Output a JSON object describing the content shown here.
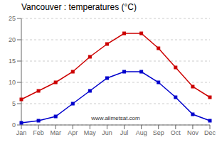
{
  "chart_data": {
    "type": "line",
    "title": "Vancouver : temperatures (°C)",
    "categories": [
      "Jan",
      "Feb",
      "Mar",
      "Apr",
      "May",
      "Jun",
      "Jul",
      "Aug",
      "Sep",
      "Oct",
      "Nov",
      "Dec"
    ],
    "series": [
      {
        "color": "#cc0000",
        "marker": "square",
        "line_style": "solid",
        "values": [
          6.0,
          8.0,
          10.0,
          12.5,
          16.0,
          19.0,
          21.5,
          21.5,
          18.0,
          13.5,
          9.0,
          6.5
        ]
      },
      {
        "color": "#0000cc",
        "marker": "square",
        "line_style": "solid",
        "values": [
          0.5,
          1.0,
          2.0,
          5.0,
          8.0,
          11.0,
          12.5,
          12.5,
          10.0,
          6.5,
          2.5,
          1.0
        ]
      }
    ],
    "ylim": [
      0,
      25
    ],
    "yticks": [
      0,
      5,
      10,
      15,
      20,
      25
    ],
    "grid": "y",
    "annotations": [
      "www.allmetsat.com"
    ]
  }
}
